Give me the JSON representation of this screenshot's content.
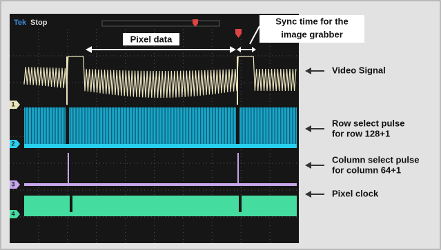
{
  "header": {
    "brand": "Tek",
    "status": "Stop"
  },
  "channels": [
    "1",
    "2",
    "3",
    "4"
  ],
  "annotations": {
    "pixel_data": "Pixel data",
    "sync_time": [
      "Sync time for the",
      "image grabber"
    ]
  },
  "labels": [
    {
      "lines": [
        "Video Signal"
      ]
    },
    {
      "lines": [
        "Row select pulse",
        "for row 128+1"
      ]
    },
    {
      "lines": [
        "Column select pulse",
        "for column 64+1"
      ]
    },
    {
      "lines": [
        "Pixel clock"
      ]
    }
  ]
}
